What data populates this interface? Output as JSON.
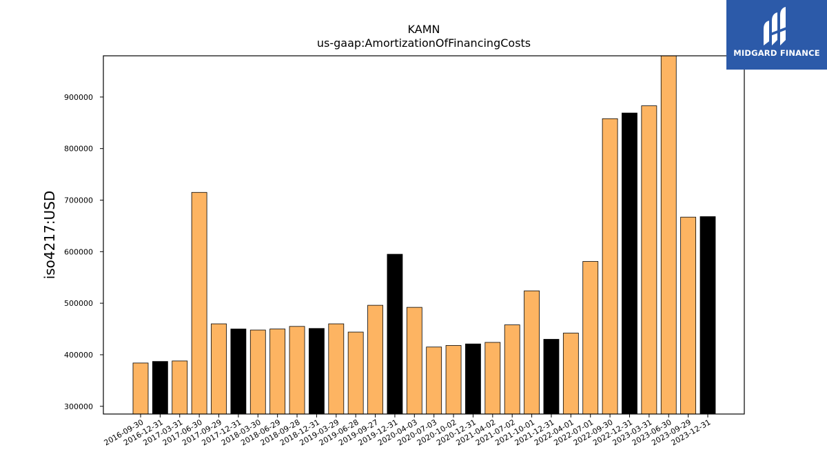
{
  "logo": {
    "text": "MIDGARD FINANCE"
  },
  "chart_data": {
    "type": "bar",
    "title": "KAMN",
    "subtitle": "us-gaap:AmortizationOfFinancingCosts",
    "ylabel": "iso4217:USD",
    "xlabel": "",
    "ylim": [
      285000,
      980000
    ],
    "yticks": [
      300000,
      400000,
      500000,
      600000,
      700000,
      800000,
      900000
    ],
    "grid": false,
    "colors": {
      "quarter": "#fdb462",
      "year_end": "#000000",
      "edge": "#000000"
    },
    "categories": [
      "2016-09-30",
      "2016-12-31",
      "2017-03-31",
      "2017-06-30",
      "2017-09-29",
      "2017-12-31",
      "2018-03-30",
      "2018-06-29",
      "2018-09-28",
      "2018-12-31",
      "2019-03-29",
      "2019-06-28",
      "2019-09-27",
      "2019-12-31",
      "2020-04-03",
      "2020-07-03",
      "2020-10-02",
      "2020-12-31",
      "2021-04-02",
      "2021-07-02",
      "2021-10-01",
      "2021-12-31",
      "2022-04-01",
      "2022-07-01",
      "2022-09-30",
      "2022-12-31",
      "2023-03-31",
      "2023-06-30",
      "2023-09-29",
      "2023-12-31"
    ],
    "values": [
      384000,
      387000,
      388000,
      715000,
      460000,
      450000,
      448000,
      450000,
      455000,
      451000,
      460000,
      444000,
      496000,
      595000,
      492000,
      415000,
      418000,
      421000,
      424000,
      458000,
      524000,
      430000,
      442000,
      581000,
      858000,
      869000,
      883000,
      985000,
      667000,
      668000
    ],
    "year_end": [
      false,
      true,
      false,
      false,
      false,
      true,
      false,
      false,
      false,
      true,
      false,
      false,
      false,
      true,
      false,
      false,
      false,
      true,
      false,
      false,
      false,
      true,
      false,
      false,
      false,
      true,
      false,
      false,
      false,
      true
    ]
  }
}
